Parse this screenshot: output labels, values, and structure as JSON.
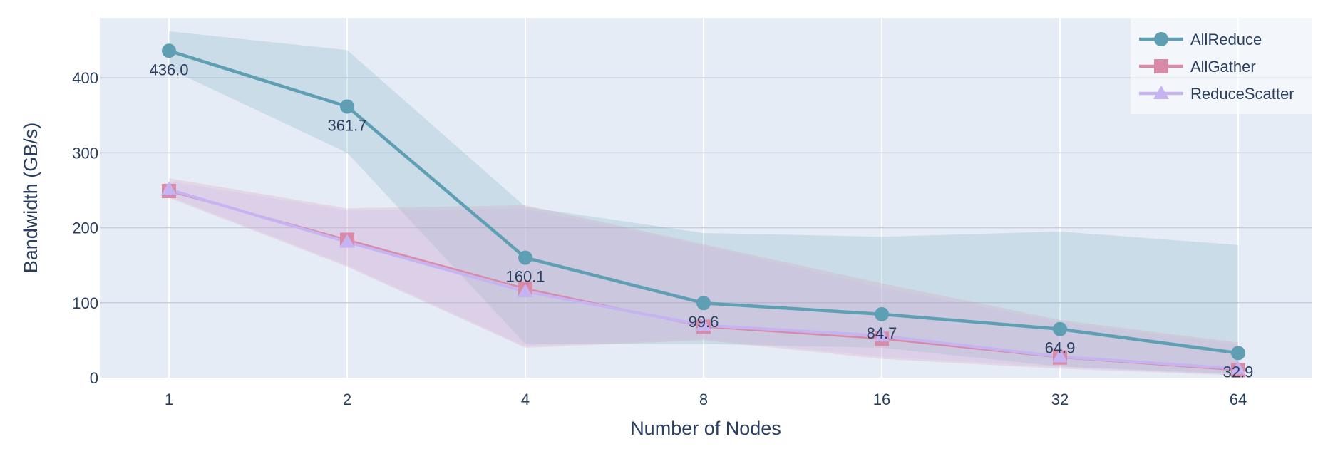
{
  "chart_data": {
    "type": "line",
    "title": "",
    "xlabel": "Number of Nodes",
    "ylabel": "Bandwidth (GB/s)",
    "x_scale": "log2",
    "x": [
      1,
      2,
      4,
      8,
      16,
      32,
      64
    ],
    "x_tick_labels": [
      "1",
      "2",
      "4",
      "8",
      "16",
      "32",
      "64"
    ],
    "ylim": [
      0,
      480
    ],
    "y_ticks": [
      0,
      100,
      200,
      300,
      400
    ],
    "grid": true,
    "legend_position": "top-right",
    "background_color": "#e5ecf6",
    "series": [
      {
        "name": "AllReduce",
        "color": "#5f9fb3",
        "marker": "circle",
        "values": [
          436.0,
          361.7,
          160.1,
          99.6,
          84.7,
          64.9,
          32.9
        ],
        "band_upper": [
          462,
          437,
          228,
          193,
          188,
          195,
          177
        ],
        "band_lower": [
          412,
          300,
          45,
          45,
          40,
          15,
          5
        ],
        "data_labels": [
          "436.0",
          "361.7",
          "160.1",
          "99.6",
          "84.7",
          "64.9",
          "32.9"
        ]
      },
      {
        "name": "AllGather",
        "color": "#d98aa6",
        "marker": "square",
        "values": [
          249,
          184,
          119,
          68,
          52,
          27,
          10
        ],
        "band_upper": [
          266,
          226,
          230,
          178,
          126,
          77,
          47
        ],
        "band_lower": [
          240,
          148,
          40,
          50,
          25,
          12,
          3
        ]
      },
      {
        "name": "ReduceScatter",
        "color": "#c5b3f2",
        "marker": "triangle",
        "values": [
          251,
          181,
          115,
          70,
          56,
          28,
          12
        ],
        "band_upper": [
          262,
          223,
          225,
          176,
          120,
          74,
          44
        ],
        "band_lower": [
          242,
          150,
          42,
          52,
          28,
          14,
          4
        ]
      }
    ]
  }
}
